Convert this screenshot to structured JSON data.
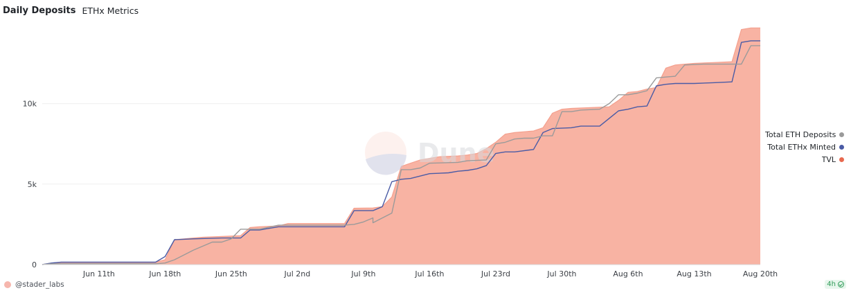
{
  "header": {
    "title": "Daily Deposits",
    "subtitle": "ETHx Metrics"
  },
  "watermark": {
    "text": "Dune"
  },
  "footer": {
    "author": "@stader_labs",
    "freshness": "4h"
  },
  "colors": {
    "tvl": "#f4a08e",
    "tvl_fill": "#f8b3a3",
    "eth_deposits": "#9a9a9a",
    "ethx_minted": "#4a5ba5",
    "tvl_dot": "#e8694f",
    "grid": "#efefef"
  },
  "legend": [
    {
      "label": "Total ETH Deposits",
      "color": "#9a9a9a"
    },
    {
      "label": "Total ETHx Minted",
      "color": "#4a5ba5"
    },
    {
      "label": "TVL",
      "color": "#e8694f"
    }
  ],
  "chart_data": {
    "type": "area",
    "x_type": "date",
    "x_start": "2023-06-05",
    "x_end": "2023-08-20",
    "x_ticks": [
      "Jun 11th",
      "Jun 18th",
      "Jun 25th",
      "Jul 2nd",
      "Jul 9th",
      "Jul 16th",
      "Jul 23rd",
      "Jul 30th",
      "Aug 6th",
      "Aug 13th",
      "Aug 20th"
    ],
    "x_tick_dates": [
      "2023-06-11",
      "2023-06-18",
      "2023-06-25",
      "2023-07-02",
      "2023-07-09",
      "2023-07-16",
      "2023-07-23",
      "2023-07-30",
      "2023-08-06",
      "2023-08-13",
      "2023-08-20"
    ],
    "y_ticks": [
      0,
      5000,
      10000
    ],
    "y_tick_labels": [
      "0",
      "5k",
      "10k"
    ],
    "ylim": [
      0,
      14800
    ],
    "grid": true,
    "legend_position": "right",
    "series": [
      {
        "name": "TVL",
        "style": "area",
        "points": [
          [
            "2023-06-05",
            0
          ],
          [
            "2023-06-06",
            100
          ],
          [
            "2023-06-07",
            150
          ],
          [
            "2023-06-17",
            150
          ],
          [
            "2023-06-18",
            300
          ],
          [
            "2023-06-19",
            1550
          ],
          [
            "2023-06-20",
            1600
          ],
          [
            "2023-06-21",
            1650
          ],
          [
            "2023-06-22",
            1700
          ],
          [
            "2023-06-24",
            1750
          ],
          [
            "2023-06-26",
            1800
          ],
          [
            "2023-06-27",
            2300
          ],
          [
            "2023-06-28",
            2350
          ],
          [
            "2023-06-30",
            2400
          ],
          [
            "2023-07-01",
            2550
          ],
          [
            "2023-07-07",
            2550
          ],
          [
            "2023-07-08",
            3500
          ],
          [
            "2023-07-10",
            3520
          ],
          [
            "2023-07-11",
            3600
          ],
          [
            "2023-07-12",
            4200
          ],
          [
            "2023-07-13",
            6100
          ],
          [
            "2023-07-14",
            6300
          ],
          [
            "2023-07-15",
            6500
          ],
          [
            "2023-07-17",
            6700
          ],
          [
            "2023-07-19",
            6750
          ],
          [
            "2023-07-20",
            6800
          ],
          [
            "2023-07-21",
            6900
          ],
          [
            "2023-07-22",
            7200
          ],
          [
            "2023-07-23",
            7600
          ],
          [
            "2023-07-24",
            8100
          ],
          [
            "2023-07-25",
            8200
          ],
          [
            "2023-07-26",
            8250
          ],
          [
            "2023-07-27",
            8300
          ],
          [
            "2023-07-28",
            8500
          ],
          [
            "2023-07-29",
            9400
          ],
          [
            "2023-07-30",
            9650
          ],
          [
            "2023-07-31",
            9700
          ],
          [
            "2023-08-02",
            9750
          ],
          [
            "2023-08-04",
            9800
          ],
          [
            "2023-08-05",
            10200
          ],
          [
            "2023-08-06",
            10700
          ],
          [
            "2023-08-07",
            10750
          ],
          [
            "2023-08-08",
            10900
          ],
          [
            "2023-08-09",
            11000
          ],
          [
            "2023-08-10",
            12200
          ],
          [
            "2023-08-11",
            12400
          ],
          [
            "2023-08-12",
            12450
          ],
          [
            "2023-08-13",
            12500
          ],
          [
            "2023-08-15",
            12550
          ],
          [
            "2023-08-17",
            12600
          ],
          [
            "2023-08-18",
            14600
          ],
          [
            "2023-08-19",
            14700
          ],
          [
            "2023-08-20",
            14700
          ]
        ]
      },
      {
        "name": "Total ETHx Minted",
        "style": "line",
        "points": [
          [
            "2023-06-05",
            0
          ],
          [
            "2023-06-06",
            100
          ],
          [
            "2023-06-07",
            150
          ],
          [
            "2023-06-17",
            150
          ],
          [
            "2023-06-18",
            500
          ],
          [
            "2023-06-19",
            1550
          ],
          [
            "2023-06-21",
            1600
          ],
          [
            "2023-06-24",
            1650
          ],
          [
            "2023-06-26",
            1650
          ],
          [
            "2023-06-27",
            2150
          ],
          [
            "2023-06-28",
            2150
          ],
          [
            "2023-06-30",
            2350
          ],
          [
            "2023-07-07",
            2350
          ],
          [
            "2023-07-08",
            3350
          ],
          [
            "2023-07-10",
            3350
          ],
          [
            "2023-07-11",
            3600
          ],
          [
            "2023-07-12",
            5150
          ],
          [
            "2023-07-13",
            5300
          ],
          [
            "2023-07-14",
            5350
          ],
          [
            "2023-07-16",
            5650
          ],
          [
            "2023-07-18",
            5700
          ],
          [
            "2023-07-19",
            5800
          ],
          [
            "2023-07-20",
            5850
          ],
          [
            "2023-07-21",
            5950
          ],
          [
            "2023-07-22",
            6150
          ],
          [
            "2023-07-23",
            6900
          ],
          [
            "2023-07-24",
            7000
          ],
          [
            "2023-07-25",
            7000
          ],
          [
            "2023-07-27",
            7150
          ],
          [
            "2023-07-28",
            8200
          ],
          [
            "2023-07-29",
            8450
          ],
          [
            "2023-07-31",
            8500
          ],
          [
            "2023-08-01",
            8600
          ],
          [
            "2023-08-03",
            8600
          ],
          [
            "2023-08-05",
            9550
          ],
          [
            "2023-08-06",
            9650
          ],
          [
            "2023-08-07",
            9800
          ],
          [
            "2023-08-08",
            9850
          ],
          [
            "2023-08-09",
            11100
          ],
          [
            "2023-08-10",
            11200
          ],
          [
            "2023-08-11",
            11250
          ],
          [
            "2023-08-13",
            11250
          ],
          [
            "2023-08-15",
            11300
          ],
          [
            "2023-08-17",
            11350
          ],
          [
            "2023-08-18",
            13800
          ],
          [
            "2023-08-19",
            13900
          ],
          [
            "2023-08-20",
            13900
          ]
        ]
      },
      {
        "name": "Total ETH Deposits",
        "style": "line",
        "points": [
          [
            "2023-06-05",
            0
          ],
          [
            "2023-06-06",
            50
          ],
          [
            "2023-06-17",
            50
          ],
          [
            "2023-06-18",
            100
          ],
          [
            "2023-06-19",
            300
          ],
          [
            "2023-06-21",
            900
          ],
          [
            "2023-06-23",
            1400
          ],
          [
            "2023-06-24",
            1400
          ],
          [
            "2023-06-25",
            1600
          ],
          [
            "2023-06-26",
            2200
          ],
          [
            "2023-06-28",
            2200
          ],
          [
            "2023-06-30",
            2450
          ],
          [
            "2023-07-07",
            2450
          ],
          [
            "2023-07-08",
            2500
          ],
          [
            "2023-07-09",
            2650
          ],
          [
            "2023-07-10",
            2900
          ],
          [
            "2023-07-10",
            2600
          ],
          [
            "2023-07-11",
            2900
          ],
          [
            "2023-07-12",
            3200
          ],
          [
            "2023-07-13",
            5900
          ],
          [
            "2023-07-14",
            5900
          ],
          [
            "2023-07-15",
            6000
          ],
          [
            "2023-07-16",
            6300
          ],
          [
            "2023-07-19",
            6350
          ],
          [
            "2023-07-20",
            6450
          ],
          [
            "2023-07-22",
            6500
          ],
          [
            "2023-07-23",
            7500
          ],
          [
            "2023-07-24",
            7600
          ],
          [
            "2023-07-25",
            7800
          ],
          [
            "2023-07-26",
            7850
          ],
          [
            "2023-07-27",
            7850
          ],
          [
            "2023-07-28",
            8000
          ],
          [
            "2023-07-29",
            8000
          ],
          [
            "2023-07-30",
            9500
          ],
          [
            "2023-07-31",
            9500
          ],
          [
            "2023-08-01",
            9600
          ],
          [
            "2023-08-03",
            9650
          ],
          [
            "2023-08-04",
            10000
          ],
          [
            "2023-08-05",
            10550
          ],
          [
            "2023-08-06",
            10550
          ],
          [
            "2023-08-07",
            10650
          ],
          [
            "2023-08-08",
            10800
          ],
          [
            "2023-08-09",
            11600
          ],
          [
            "2023-08-10",
            11650
          ],
          [
            "2023-08-11",
            11700
          ],
          [
            "2023-08-12",
            12400
          ],
          [
            "2023-08-14",
            12450
          ],
          [
            "2023-08-17",
            12450
          ],
          [
            "2023-08-18",
            12450
          ],
          [
            "2023-08-19",
            13600
          ],
          [
            "2023-08-20",
            13600
          ]
        ]
      }
    ]
  }
}
